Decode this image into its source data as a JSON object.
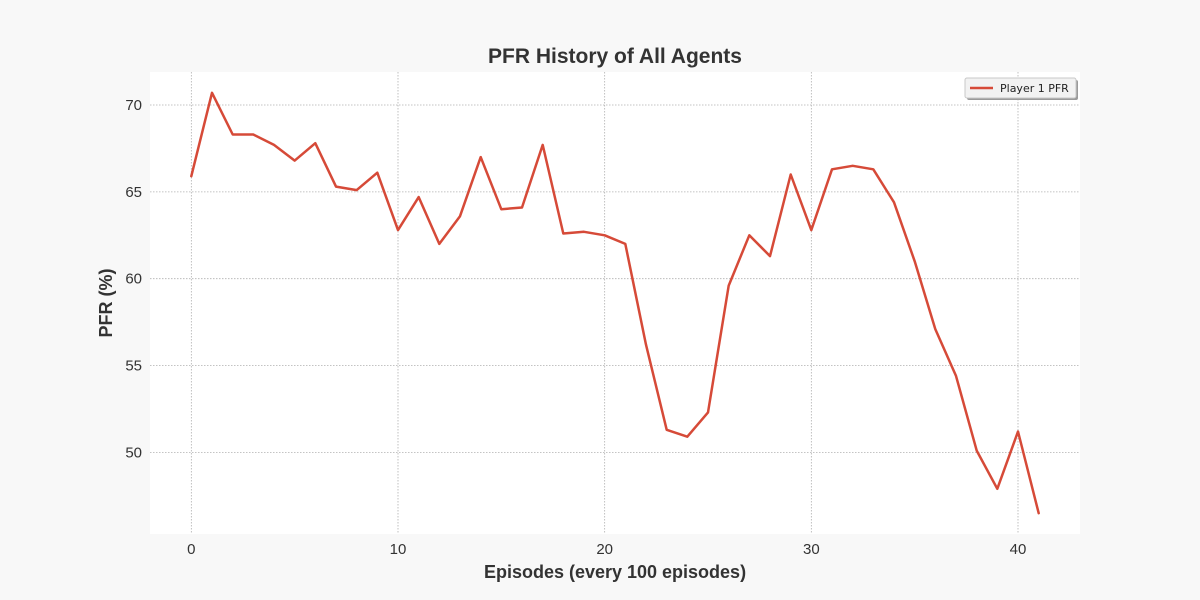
{
  "chart_data": {
    "type": "line",
    "title": "PFR History of All Agents",
    "xlabel": "Episodes (every 100 episodes)",
    "ylabel": "PFR (%)",
    "xlim": [
      -2,
      43
    ],
    "ylim": [
      45.3,
      71.9
    ],
    "xticks": [
      0,
      10,
      20,
      30,
      40
    ],
    "yticks": [
      50,
      55,
      60,
      65,
      70
    ],
    "grid": true,
    "legend_position": "top-right",
    "series": [
      {
        "name": "Player 1 PFR",
        "color": "#d64a38",
        "x": [
          0,
          1,
          2,
          3,
          4,
          5,
          6,
          7,
          8,
          9,
          10,
          11,
          12,
          13,
          14,
          15,
          16,
          17,
          18,
          19,
          20,
          21,
          22,
          23,
          24,
          25,
          26,
          27,
          28,
          29,
          30,
          31,
          32,
          33,
          34,
          35,
          36,
          37,
          38,
          39,
          40,
          41
        ],
        "values": [
          65.9,
          70.7,
          68.3,
          68.3,
          67.7,
          66.8,
          67.8,
          65.3,
          65.1,
          66.1,
          62.8,
          64.7,
          62.0,
          63.6,
          67.0,
          64.0,
          64.1,
          67.7,
          62.6,
          62.7,
          62.5,
          62.0,
          56.2,
          51.3,
          50.9,
          52.3,
          59.6,
          62.5,
          61.3,
          66.0,
          62.8,
          66.3,
          66.5,
          66.3,
          64.4,
          61.0,
          57.1,
          54.4,
          50.1,
          47.9,
          51.2,
          46.5
        ]
      }
    ]
  }
}
